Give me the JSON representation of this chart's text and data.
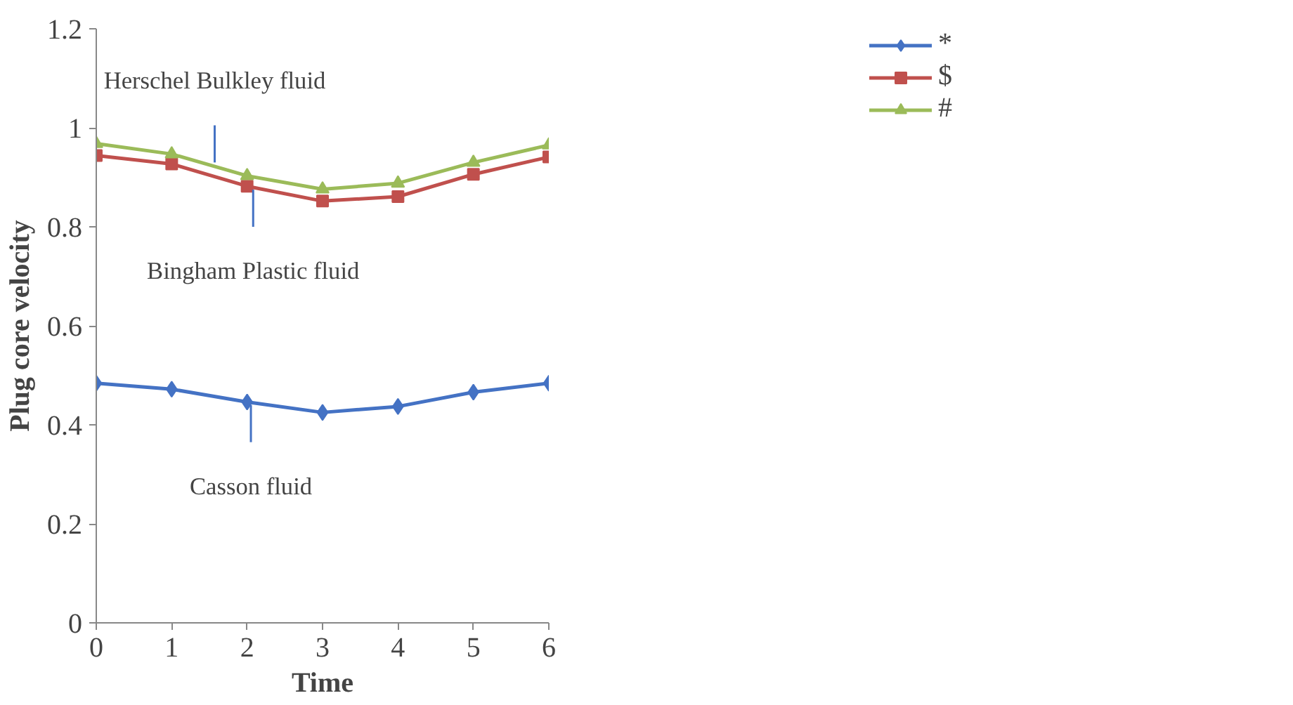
{
  "chart_data": {
    "type": "line",
    "xlabel": "Time",
    "ylabel": "Plug core velocity",
    "x": [
      0,
      1,
      2,
      3,
      4,
      5,
      6
    ],
    "series": [
      {
        "name": "*",
        "color": "#4472c4",
        "marker": "diamond",
        "values": [
          0.484,
          0.472,
          0.446,
          0.425,
          0.437,
          0.466,
          0.484
        ]
      },
      {
        "name": "$",
        "color": "#c0504d",
        "marker": "square",
        "values": [
          0.944,
          0.927,
          0.882,
          0.852,
          0.861,
          0.906,
          0.941
        ]
      },
      {
        "name": "#",
        "color": "#9bbb59",
        "marker": "triangle",
        "values": [
          0.968,
          0.947,
          0.903,
          0.876,
          0.888,
          0.93,
          0.965
        ]
      }
    ],
    "annotations": [
      {
        "text": "Herschel Bulkley fluid",
        "x": 1.57,
        "y": 0.93
      },
      {
        "text": "Bingham Plastic fluid",
        "x": 2.08,
        "y": 0.875
      },
      {
        "text": "Casson fluid",
        "x": 2.05,
        "y": 0.44
      }
    ],
    "xlim": [
      0,
      6
    ],
    "ylim": [
      0,
      1.2
    ],
    "xticks": [
      0,
      1,
      2,
      3,
      4,
      5,
      6
    ],
    "yticks": [
      0,
      0.2,
      0.4,
      0.6,
      0.8,
      1,
      1.2
    ],
    "grid": false,
    "legend": "top right",
    "line_style": "solid"
  }
}
